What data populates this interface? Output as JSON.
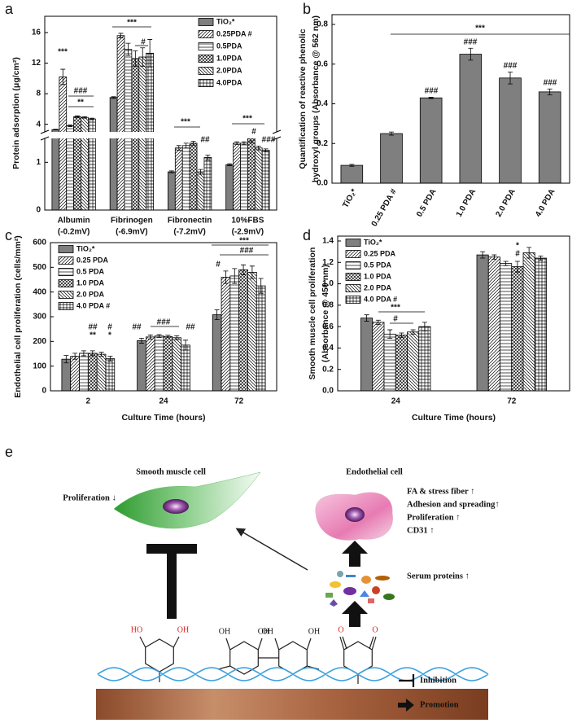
{
  "chart_data": [
    {
      "type": "bar",
      "label": "a",
      "ylabel": "Protein adsorption (μg/cm²)",
      "categories": [
        "Albumin",
        "Fibrinogen",
        "Fibronectin",
        "10%FBS"
      ],
      "category_notes": [
        "(-0.2mV)",
        "(-6.9mV)",
        "(-7.2mV)",
        "(-2.9mV)"
      ],
      "series": [
        {
          "name": "TiO₂*",
          "color": "#7f7f7f",
          "pattern": "solid",
          "values": [
            3.3,
            7.5,
            0.8,
            0.95
          ],
          "errors": [
            0.05,
            0.1,
            0.02,
            0.02
          ]
        },
        {
          "name": "0.25PDA #",
          "color": "#ffffff",
          "pattern": "diagonal",
          "values": [
            10.2,
            15.6,
            1.3,
            1.4
          ],
          "errors": [
            1.0,
            0.3,
            0.05,
            0.03
          ]
        },
        {
          "name": "0.5PDA",
          "color": "#ffffff",
          "pattern": "horizontal",
          "values": [
            3.8,
            13.8,
            1.35,
            1.4
          ],
          "errors": [
            0.1,
            0.8,
            0.05,
            0.03
          ]
        },
        {
          "name": "1.0PDA",
          "color": "#ffffff",
          "pattern": "crosshatch",
          "values": [
            5.0,
            12.6,
            1.4,
            1.5
          ],
          "errors": [
            0.1,
            1.0,
            0.04,
            0.05
          ]
        },
        {
          "name": "2.0PDA",
          "color": "#ffffff",
          "pattern": "backdiagonal",
          "values": [
            4.9,
            12.8,
            0.8,
            1.3
          ],
          "errors": [
            0.1,
            1.2,
            0.05,
            0.04
          ]
        },
        {
          "name": "4.0PDA",
          "color": "#ffffff",
          "pattern": "grid",
          "values": [
            4.7,
            13.3,
            1.1,
            1.25
          ],
          "errors": [
            0.1,
            1.8,
            0.05,
            0.03
          ]
        }
      ],
      "ylim": [
        0,
        16
      ],
      "axis_break": [
        1.5,
        3
      ],
      "yticks": [
        0,
        1,
        4,
        8,
        12,
        16
      ],
      "legend": "upper right",
      "annotations": [
        "***",
        "###",
        "**",
        "***",
        "#",
        "***",
        "##",
        "***",
        "#",
        "###"
      ]
    },
    {
      "type": "bar",
      "label": "b",
      "ylabel": [
        "Quantification of reactive phenolic",
        "hydroxyl groups (Absorbance @ 562 nm)"
      ],
      "categories": [
        "TiO₂*",
        "0.25 PDA #",
        "0.5 PDA",
        "1.0 PDA",
        "2.0 PDA",
        "4.0 PDA"
      ],
      "values": [
        0.09,
        0.25,
        0.43,
        0.65,
        0.53,
        0.46
      ],
      "errors": [
        0.005,
        0.008,
        0.003,
        0.03,
        0.03,
        0.015
      ],
      "color": "#7f7f7f",
      "ylim": [
        0,
        0.8
      ],
      "yticks": [
        {
          "value": 0,
          "label": "0.0"
        },
        0.2,
        0.4,
        0.6,
        0.8
      ],
      "annotations": [
        "###",
        "###",
        "###",
        "###",
        "***"
      ]
    },
    {
      "type": "bar",
      "label": "c",
      "ylabel": "Endothelial cell proliferation (cells/mm²)",
      "xlabel": "Culture Time (hours)",
      "categories": [
        "2",
        "24",
        "72"
      ],
      "series": [
        {
          "name": "TiO₂*",
          "color": "#7f7f7f",
          "pattern": "solid",
          "values": [
            128,
            203,
            308
          ],
          "errors": [
            15,
            10,
            20
          ]
        },
        {
          "name": "0.25 PDA",
          "color": "#ffffff",
          "pattern": "diagonal",
          "values": [
            140,
            218,
            460
          ],
          "errors": [
            12,
            8,
            25
          ]
        },
        {
          "name": "0.5 PDA",
          "color": "#ffffff",
          "pattern": "horizontal",
          "values": [
            152,
            222,
            465
          ],
          "errors": [
            10,
            6,
            30
          ]
        },
        {
          "name": "1.0 PDA",
          "color": "#ffffff",
          "pattern": "crosshatch",
          "values": [
            152,
            220,
            490
          ],
          "errors": [
            10,
            5,
            20
          ]
        },
        {
          "name": "2.0 PDA",
          "color": "#ffffff",
          "pattern": "backdiagonal",
          "values": [
            148,
            215,
            480
          ],
          "errors": [
            8,
            8,
            25
          ]
        },
        {
          "name": "4.0 PDA #",
          "color": "#ffffff",
          "pattern": "grid",
          "values": [
            130,
            185,
            425
          ],
          "errors": [
            10,
            20,
            30
          ]
        }
      ],
      "ylim": [
        0,
        600
      ],
      "yticks": [
        0,
        100,
        200,
        300,
        400,
        500,
        600
      ],
      "legend": "upper left",
      "annotations": [
        "##",
        "**",
        "#",
        "*",
        "##",
        "###",
        "##",
        "#",
        "***",
        "###"
      ]
    },
    {
      "type": "bar",
      "label": "d",
      "ylabel": [
        "Smooth muscle cell proliferation",
        "(Absorbance @ 450 nm)"
      ],
      "xlabel": "Culture Time (hours)",
      "categories": [
        "24",
        "72"
      ],
      "series": [
        {
          "name": "TiO₂*",
          "color": "#7f7f7f",
          "pattern": "solid",
          "values": [
            0.68,
            1.27
          ],
          "errors": [
            0.03,
            0.03
          ]
        },
        {
          "name": "0.25 PDA",
          "color": "#ffffff",
          "pattern": "diagonal",
          "values": [
            0.64,
            1.25
          ],
          "errors": [
            0.02,
            0.02
          ]
        },
        {
          "name": "0.5 PDA",
          "color": "#ffffff",
          "pattern": "horizontal",
          "values": [
            0.53,
            1.19
          ],
          "errors": [
            0.04,
            0.02
          ]
        },
        {
          "name": "1.0 PDA",
          "color": "#ffffff",
          "pattern": "crosshatch",
          "values": [
            0.52,
            1.16
          ],
          "errors": [
            0.02,
            0.05
          ]
        },
        {
          "name": "2.0 PDA",
          "color": "#ffffff",
          "pattern": "backdiagonal",
          "values": [
            0.55,
            1.29
          ],
          "errors": [
            0.02,
            0.05
          ]
        },
        {
          "name": "4.0 PDA #",
          "color": "#ffffff",
          "pattern": "grid",
          "values": [
            0.6,
            1.24
          ],
          "errors": [
            0.04,
            0.02
          ]
        }
      ],
      "ylim": [
        0,
        1.4
      ],
      "yticks": [
        {
          "value": 0,
          "label": "0.0"
        },
        0.2,
        0.4,
        0.6,
        0.8,
        {
          "value": 1,
          "label": "1.0"
        },
        1.2,
        1.4
      ],
      "legend": "upper left",
      "annotations": [
        "***",
        "#",
        "*",
        "#"
      ]
    }
  ],
  "diagram": {
    "label": "e",
    "smc_title": "Smooth muscle cell",
    "smc_effect": "Proliferation ↓",
    "ec_title": "Endothelial cell",
    "ec_effects": [
      "FA & stress fiber ↑",
      "Adhesion and spreading↑",
      "Proliferation ↑",
      "CD31 ↑"
    ],
    "serum": "Serum proteins ↑",
    "legend": [
      "Inhibition",
      "Promotion"
    ],
    "chem_labels": [
      "HO",
      "OH",
      "OH",
      "OH",
      "OH",
      "OH",
      "O",
      "O"
    ]
  }
}
